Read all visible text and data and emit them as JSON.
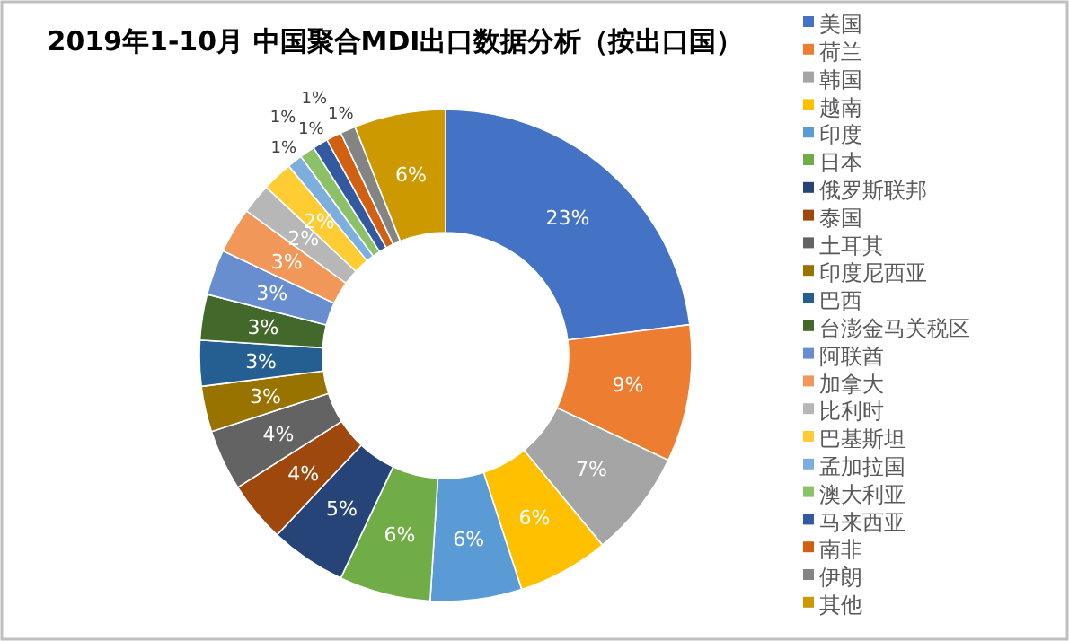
{
  "chart_data": {
    "type": "donut",
    "title": "2019年1-10月 中国聚合MDI出口数据分析（按出口国）",
    "categories": [
      "美国",
      "荷兰",
      "韩国",
      "越南",
      "印度",
      "日本",
      "俄罗斯联邦",
      "泰国",
      "土耳其",
      "印度尼西亚",
      "巴西",
      "台澎金马关税区",
      "阿联酋",
      "加拿大",
      "比利时",
      "巴基斯坦",
      "孟加拉国",
      "澳大利亚",
      "马来西亚",
      "南非",
      "伊朗",
      "其他"
    ],
    "values": [
      23,
      9,
      7,
      6,
      6,
      6,
      5,
      4,
      4,
      3,
      3,
      3,
      3,
      3,
      2,
      2,
      1,
      1,
      1,
      1,
      1,
      6
    ],
    "value_labels": [
      "23%",
      "9%",
      "7%",
      "6%",
      "6%",
      "6%",
      "5%",
      "4%",
      "4%",
      "3%",
      "3%",
      "3%",
      "3%",
      "3%",
      "2%",
      "2%",
      "1%",
      "1%",
      "1%",
      "1%",
      "1%",
      "6%"
    ],
    "colors": [
      "#4472c4",
      "#ed7d31",
      "#a5a5a5",
      "#ffc000",
      "#5b9bd5",
      "#70ad47",
      "#264478",
      "#9e480e",
      "#636363",
      "#997300",
      "#255e91",
      "#43682b",
      "#698ed0",
      "#f1975a",
      "#b7b7b7",
      "#ffcd33",
      "#7cafdd",
      "#8cc168",
      "#335aa1",
      "#d26012",
      "#848484",
      "#cc9a00"
    ],
    "legend": "right"
  }
}
